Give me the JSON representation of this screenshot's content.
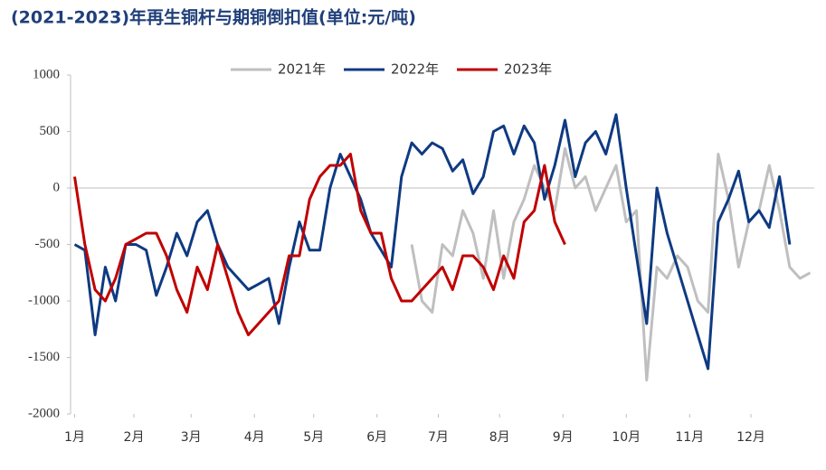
{
  "chart_data": {
    "type": "line",
    "title": "(2021-2023)年再生铜杆与期铜倒扣值(单位:元/吨)",
    "x": [
      0,
      5,
      10,
      15,
      20,
      25,
      30,
      35,
      40,
      45,
      50,
      55,
      60,
      65,
      70,
      75,
      80,
      85,
      90,
      95,
      100,
      105,
      110,
      115,
      120,
      125,
      130,
      135,
      140,
      145,
      150,
      155,
      160,
      165,
      170,
      175,
      180,
      185,
      190,
      195,
      200,
      205,
      210,
      215,
      220,
      225,
      230,
      235,
      240,
      245,
      250,
      255,
      260,
      265,
      270,
      275,
      280,
      285,
      290,
      295,
      300,
      305,
      310,
      315,
      320,
      325,
      330,
      335,
      340,
      345,
      350,
      355,
      360
    ],
    "xlim": [
      -2,
      362
    ],
    "xticks": [
      {
        "value": 0,
        "label": "1月"
      },
      {
        "value": 29,
        "label": "2月"
      },
      {
        "value": 57,
        "label": "3月"
      },
      {
        "value": 88,
        "label": "4月"
      },
      {
        "value": 117,
        "label": "5月"
      },
      {
        "value": 148,
        "label": "6月"
      },
      {
        "value": 178,
        "label": "7月"
      },
      {
        "value": 208,
        "label": "8月"
      },
      {
        "value": 239,
        "label": "9月"
      },
      {
        "value": 270,
        "label": "10月"
      },
      {
        "value": 301,
        "label": "11月"
      },
      {
        "value": 331,
        "label": "12月"
      }
    ],
    "ylim": [
      -2000,
      1000
    ],
    "yticks": [
      -2000,
      -1500,
      -1000,
      -500,
      0,
      500,
      1000
    ],
    "legend": "top",
    "series": [
      {
        "name": "2021年",
        "color": "#bfbfbf",
        "values": [
          null,
          null,
          null,
          null,
          null,
          null,
          null,
          null,
          null,
          null,
          null,
          null,
          null,
          null,
          null,
          null,
          null,
          null,
          null,
          null,
          null,
          null,
          null,
          null,
          null,
          null,
          null,
          null,
          null,
          null,
          null,
          null,
          null,
          -500,
          -1000,
          -1100,
          -500,
          -600,
          -200,
          -400,
          -800,
          -200,
          -800,
          -300,
          -100,
          200,
          0,
          -200,
          350,
          0,
          100,
          -200,
          0,
          200,
          -300,
          -200,
          -1700,
          -700,
          -800,
          -600,
          -700,
          -1000,
          -1100,
          300,
          -100,
          -700,
          -300,
          -200,
          200,
          -200,
          -700,
          -800,
          -750
        ]
      },
      {
        "name": "2022年",
        "color": "#0f3a82",
        "values": [
          -500,
          -550,
          -1300,
          -700,
          -1000,
          -500,
          -500,
          -550,
          -950,
          -700,
          -400,
          -600,
          -300,
          -200,
          -500,
          -700,
          -800,
          -900,
          -850,
          -800,
          -1200,
          -700,
          -300,
          -550,
          -550,
          0,
          300,
          100,
          -100,
          -400,
          -550,
          -700,
          100,
          400,
          300,
          400,
          350,
          150,
          250,
          -50,
          100,
          500,
          550,
          300,
          550,
          400,
          -100,
          200,
          600,
          100,
          400,
          500,
          300,
          650,
          0,
          -600,
          -1200,
          0,
          -400,
          -700,
          -1000,
          -1300,
          -1600,
          -300,
          -100,
          150,
          -300,
          -200,
          -350,
          100,
          -500,
          null,
          null
        ]
      },
      {
        "name": "2023年",
        "color": "#c00000",
        "values": [
          100,
          -500,
          -900,
          -1000,
          -800,
          -500,
          -450,
          -400,
          -400,
          -600,
          -900,
          -1100,
          -700,
          -900,
          -500,
          -800,
          -1100,
          -1300,
          -1200,
          -1100,
          -1000,
          -600,
          -600,
          -100,
          100,
          200,
          200,
          300,
          -200,
          -400,
          -400,
          -800,
          -1000,
          -1000,
          -900,
          -800,
          -700,
          -900,
          -600,
          -600,
          -700,
          -900,
          -600,
          -800,
          -300,
          -200,
          200,
          -300,
          -500,
          null,
          null,
          null,
          null,
          null,
          null,
          null,
          null,
          null,
          null,
          null,
          null,
          null,
          null,
          null,
          null,
          null,
          null,
          null,
          null,
          null,
          null,
          null,
          null
        ]
      }
    ]
  }
}
